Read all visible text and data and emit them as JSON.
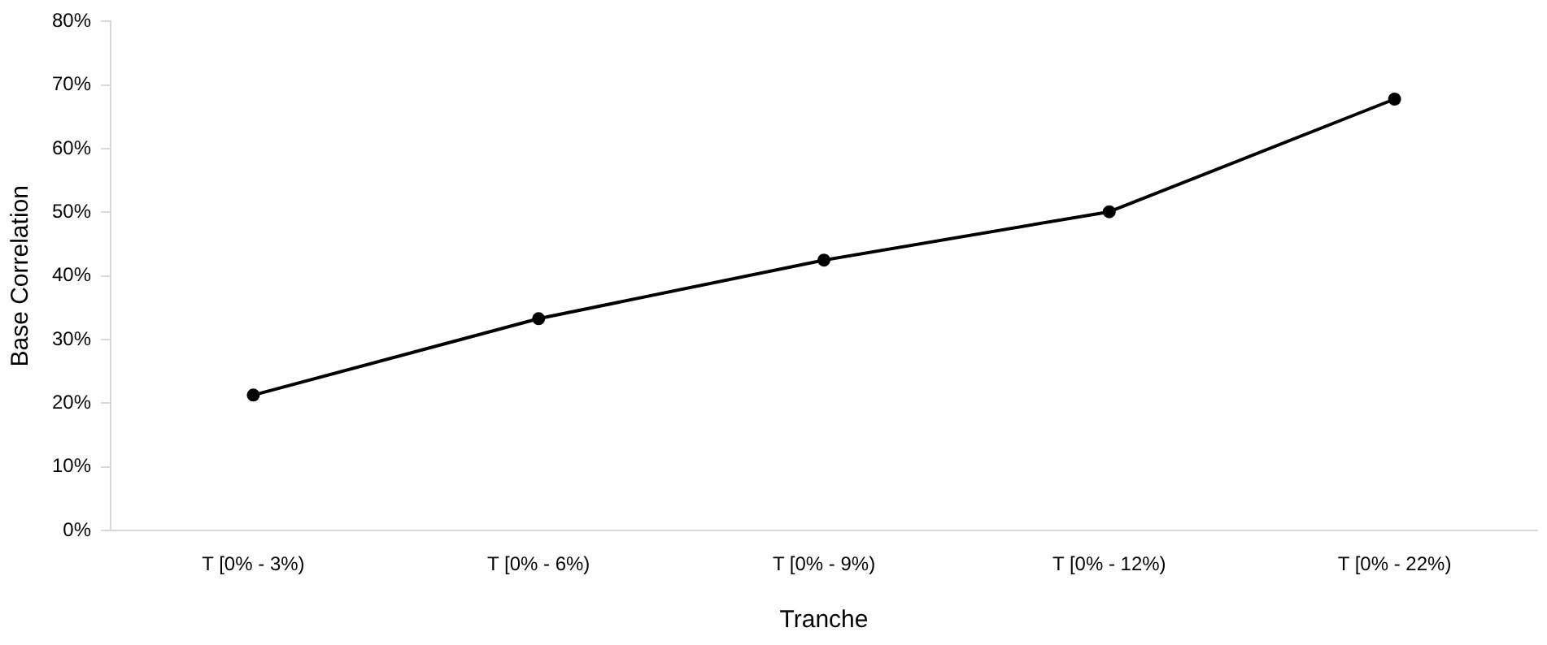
{
  "chart_data": {
    "type": "line",
    "xlabel": "Tranche",
    "ylabel": "Base Correlation",
    "categories": [
      "T [0% - 3%)",
      "T [0% - 6%)",
      "T [0% - 9%)",
      "T [0% - 12%)",
      "T [0% - 22%)"
    ],
    "series": [
      {
        "color": "#000000",
        "values": [
          21.3,
          33.3,
          42.5,
          50.1,
          67.8
        ]
      }
    ],
    "ylim": [
      0,
      80
    ],
    "yticks": [
      {
        "value": 0,
        "label": "0%"
      },
      {
        "value": 10,
        "label": "10%"
      },
      {
        "value": 20,
        "label": "20%"
      },
      {
        "value": 30,
        "label": "30%"
      },
      {
        "value": 40,
        "label": "40%"
      },
      {
        "value": 50,
        "label": "50%"
      },
      {
        "value": 60,
        "label": "60%"
      },
      {
        "value": 70,
        "label": "70%"
      },
      {
        "value": 80,
        "label": "80%"
      }
    ],
    "grid": false,
    "legend": false,
    "marker": "circle",
    "line_style": "solid"
  }
}
